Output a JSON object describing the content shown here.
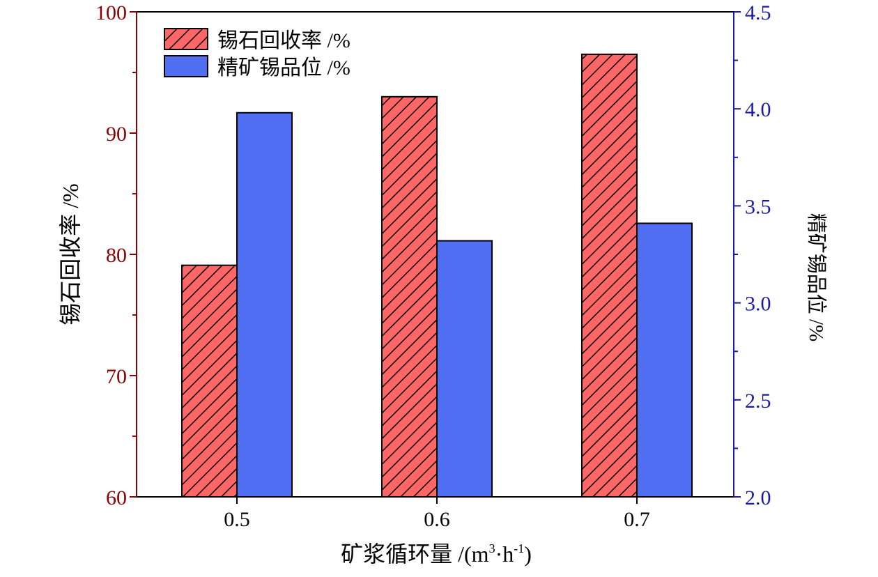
{
  "chart_data": {
    "type": "bar",
    "title": "",
    "categories": [
      "0.5",
      "0.6",
      "0.7"
    ],
    "xlabel": "矿浆循环量 /(m³·h⁻¹)",
    "xlabel_parts": {
      "main": "矿浆循环量 /(m",
      "sup1": "3",
      "mid": "·h",
      "sup2": "-1",
      "end": ")"
    },
    "y_left": {
      "label": "锡石回收率 /%",
      "ylim": [
        60,
        100
      ],
      "ticks": [
        "60",
        "70",
        "80",
        "90",
        "100"
      ],
      "color": "#8b0000"
    },
    "y_right": {
      "label": "精矿锡品位 /%",
      "ylim": [
        2.0,
        4.5
      ],
      "ticks": [
        "2.0",
        "2.5",
        "3.0",
        "3.5",
        "4.0",
        "4.5"
      ],
      "color": "#1a1aa6"
    },
    "series": [
      {
        "name": "锡石回收率 /%",
        "axis": "left",
        "values": [
          79.1,
          93.0,
          96.5
        ],
        "color": "#ff6666",
        "pattern": "hatched"
      },
      {
        "name": "精矿锡品位 /%",
        "axis": "right",
        "values": [
          3.98,
          3.32,
          3.41
        ],
        "color": "#4f6ef2",
        "pattern": "solid"
      }
    ],
    "legend": {
      "position": "top-left"
    },
    "grid": false
  }
}
